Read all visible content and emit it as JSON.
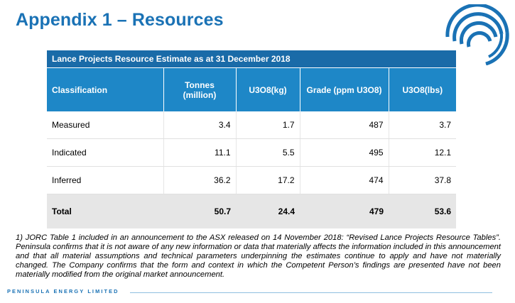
{
  "title": "Appendix 1 – Resources",
  "table": {
    "caption": "Lance Projects Resource Estimate as at 31 December 2018",
    "headers": [
      "Classification",
      "Tonnes (million)",
      "U3O8(kg)",
      "Grade (ppm U3O8)",
      "U3O8(lbs)"
    ],
    "rows": [
      {
        "classification": "Measured",
        "tonnes": "3.4",
        "u3o8_kg": "1.7",
        "grade": "487",
        "u3o8_lbs": "3.7"
      },
      {
        "classification": "Indicated",
        "tonnes": "11.1",
        "u3o8_kg": "5.5",
        "grade": "495",
        "u3o8_lbs": "12.1"
      },
      {
        "classification": "Inferred",
        "tonnes": "36.2",
        "u3o8_kg": "17.2",
        "grade": "474",
        "u3o8_lbs": "37.8"
      }
    ],
    "total": {
      "classification": "Total",
      "tonnes": "50.7",
      "u3o8_kg": "24.4",
      "grade": "479",
      "u3o8_lbs": "53.6"
    }
  },
  "footnote": "1) JORC Table 1 included in an announcement to the ASX released on 14 November 2018: “Revised Lance Projects Resource Tables”. Peninsula confirms that it is not aware of any new information or data that materially affects the information included in this announcement and that all material assumptions and technical parameters underpinning the estimates continue to apply and have not materially changed. The Company confirms that the form and context in which the Competent Person’s findings are presented have not been materially modified from the original market announcement.",
  "footer": {
    "company": "PENINSULA ENERGY LIMITED"
  },
  "colors": {
    "brand_blue": "#1a72b5",
    "header_blue": "#1e87c7",
    "caption_blue": "#1a6ba8",
    "total_gray": "#e6e6e6"
  },
  "icons": {
    "logo": "concentric-arcs-logo-icon"
  }
}
